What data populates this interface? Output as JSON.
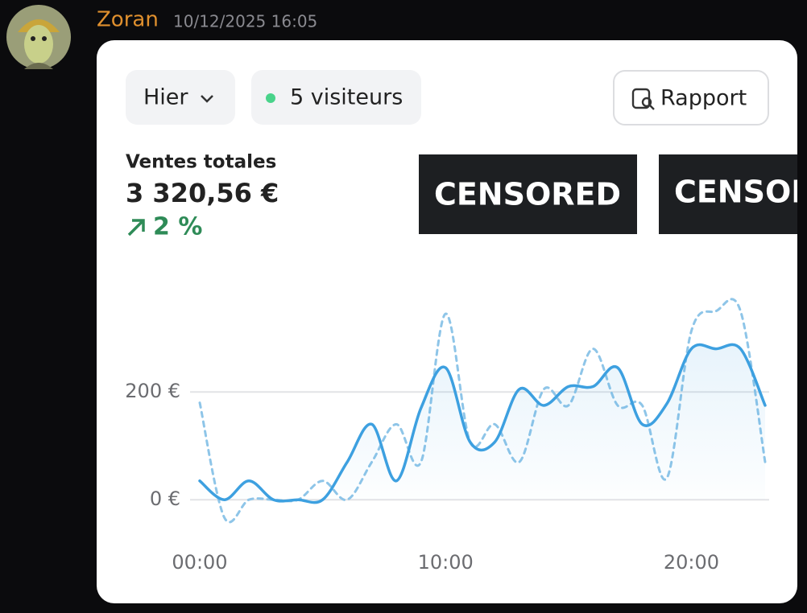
{
  "message": {
    "author": "Zoran",
    "timestamp": "10/12/2025 16:05"
  },
  "toolbar": {
    "period": "Hier",
    "visitors": "5 visiteurs",
    "report": "Rapport"
  },
  "summary": {
    "label": "Ventes totales",
    "total": "3 320,56 €",
    "change": "2 %"
  },
  "redactions": [
    "CENSORED",
    "CENSORED"
  ],
  "chart_data": {
    "type": "line",
    "x": [
      0,
      1,
      2,
      3,
      4,
      5,
      6,
      7,
      8,
      9,
      10,
      11,
      12,
      13,
      14,
      15,
      16,
      17,
      18,
      19,
      20,
      21,
      22,
      23
    ],
    "xlim": [
      0,
      23
    ],
    "xticks": [
      {
        "value": 0,
        "label": "00:00"
      },
      {
        "value": 10,
        "label": "10:00"
      },
      {
        "value": 20,
        "label": "20:00"
      }
    ],
    "ylim": [
      -40,
      360
    ],
    "yticks": [
      {
        "value": 0,
        "label": "0 €"
      },
      {
        "value": 200,
        "label": "200 €"
      }
    ],
    "grid": true,
    "series": [
      {
        "color": "#3da0e0",
        "style": "solid",
        "values": [
          35,
          0,
          35,
          0,
          0,
          0,
          70,
          140,
          35,
          170,
          245,
          107,
          107,
          205,
          175,
          210,
          210,
          245,
          140,
          178,
          280,
          280,
          280,
          175
        ]
      },
      {
        "color": "#8ec5e8",
        "style": "dashed",
        "values": [
          180,
          -33,
          0,
          0,
          0,
          35,
          0,
          70,
          140,
          70,
          345,
          107,
          140,
          70,
          205,
          175,
          280,
          175,
          175,
          40,
          313,
          350,
          350,
          70
        ]
      }
    ]
  }
}
